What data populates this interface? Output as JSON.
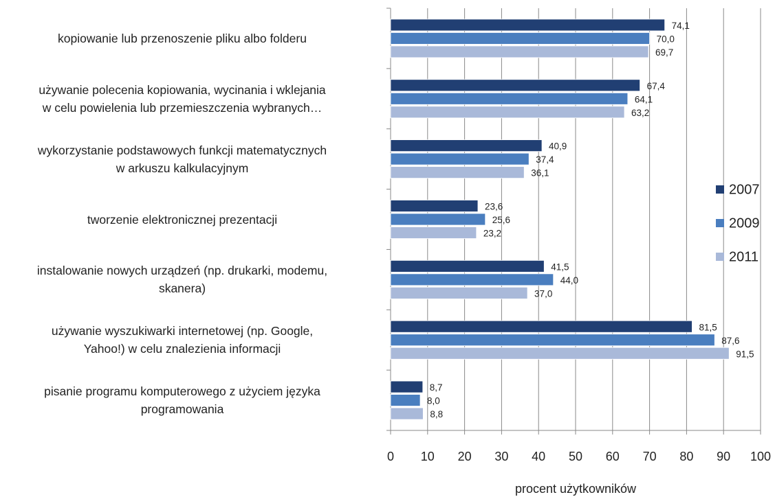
{
  "chart_data": {
    "type": "barh",
    "categories": [
      "kopiowanie lub przenoszenie pliku albo folderu",
      "używanie polecenia kopiowania, wycinania i wklejania\nw celu powielenia lub przemieszczenia wybranych…",
      "wykorzystanie podstawowych funkcji matematycznych\nw arkuszu kalkulacyjnym",
      "tworzenie elektronicznej prezentacji",
      "instalowanie nowych urządzeń (np. drukarki, modemu,\nskanera)",
      "używanie wyszukiwarki internetowej (np. Google,\nYahoo!) w celu znalezienia informacji",
      "pisanie programu komputerowego z użyciem języka\nprogramowania"
    ],
    "series": [
      {
        "name": "2007",
        "color": "#213f73",
        "values": [
          74.1,
          67.4,
          40.9,
          23.6,
          41.5,
          81.5,
          8.7
        ],
        "value_labels": [
          "74,1",
          "67,4",
          "40,9",
          "23,6",
          "41,5",
          "81,5",
          "8,7"
        ]
      },
      {
        "name": "2009",
        "color": "#4a7ebf",
        "values": [
          70.0,
          64.1,
          37.4,
          25.6,
          44.0,
          87.6,
          8.0
        ],
        "value_labels": [
          "70,0",
          "64,1",
          "37,4",
          "25,6",
          "44,0",
          "87,6",
          "8,0"
        ]
      },
      {
        "name": "2011",
        "color": "#a9b9d9",
        "values": [
          69.7,
          63.2,
          36.1,
          23.2,
          37.0,
          91.5,
          8.8
        ],
        "value_labels": [
          "69,7",
          "63,2",
          "36,1",
          "23,2",
          "37,0",
          "91,5",
          "8,8"
        ]
      }
    ],
    "xlabel": "procent użytkowników",
    "xlim": [
      0,
      100
    ],
    "xticks": [
      0,
      10,
      20,
      30,
      40,
      50,
      60,
      70,
      80,
      90,
      100
    ],
    "grid": true,
    "legend": "right"
  }
}
